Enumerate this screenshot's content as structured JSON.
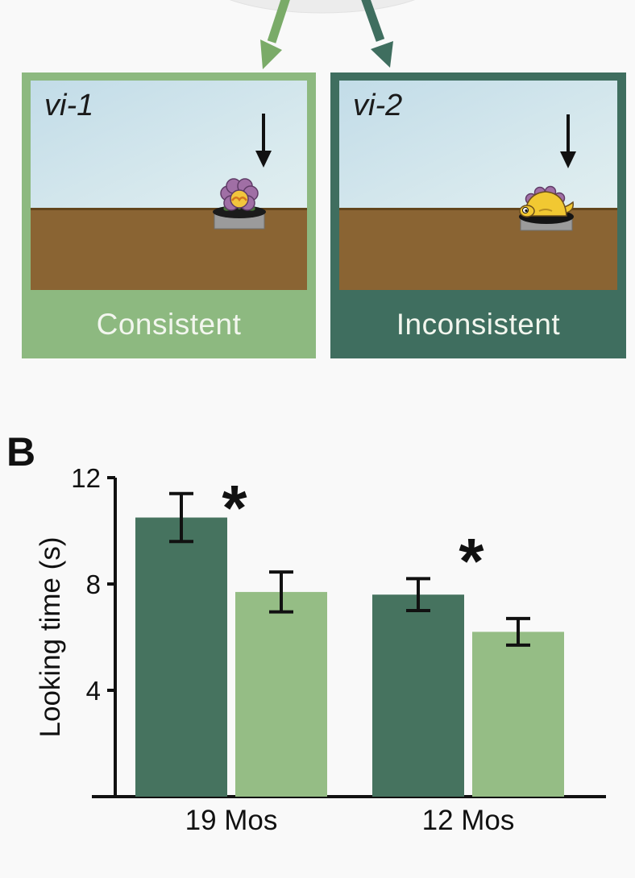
{
  "figure_background": "#f9f9f9",
  "occluder": {
    "color": "#ececec"
  },
  "branch_arrows": {
    "left_color": "#7aab68",
    "right_color": "#3f6e5f"
  },
  "panels": [
    {
      "label": "vi-1",
      "caption": "Consistent",
      "frame_color": "#8db980",
      "sky_gradient_top": "#c2dce8",
      "sky_gradient_bottom": "#e9f3f2",
      "ground_color": "#8a6433",
      "ground_edge_color": "#63451c",
      "caption_text_color": "#f2f6ee",
      "object": "purple flower in pot",
      "drop_arrow_color": "#111111"
    },
    {
      "label": "vi-2",
      "caption": "Inconsistent",
      "frame_color": "#3f6e5f",
      "sky_gradient_top": "#c2dce8",
      "sky_gradient_bottom": "#e9f3f2",
      "ground_color": "#8a6433",
      "ground_edge_color": "#63451c",
      "caption_text_color": "#f2f6ee",
      "object": "yellow toy creature on pot",
      "drop_arrow_color": "#111111"
    }
  ],
  "section_label": "B",
  "chart_data": {
    "type": "bar",
    "title": "",
    "xlabel": "",
    "ylabel": "Looking time (s)",
    "ylim": [
      0,
      12
    ],
    "yticks": [
      4,
      8,
      12
    ],
    "categories": [
      "19 Mos",
      "12 Mos"
    ],
    "series": [
      {
        "name": "Inconsistent",
        "color": "#46735f",
        "values": [
          10.5,
          7.6
        ],
        "errors": [
          0.9,
          0.6
        ]
      },
      {
        "name": "Consistent",
        "color": "#95bd85",
        "values": [
          7.7,
          6.2
        ],
        "errors": [
          0.75,
          0.5
        ]
      }
    ],
    "annotations": [
      {
        "text": "*",
        "category": "19 Mos"
      },
      {
        "text": "*",
        "category": "12 Mos"
      }
    ],
    "grid": false,
    "legend_position": "none",
    "axis_color": "#111111"
  }
}
